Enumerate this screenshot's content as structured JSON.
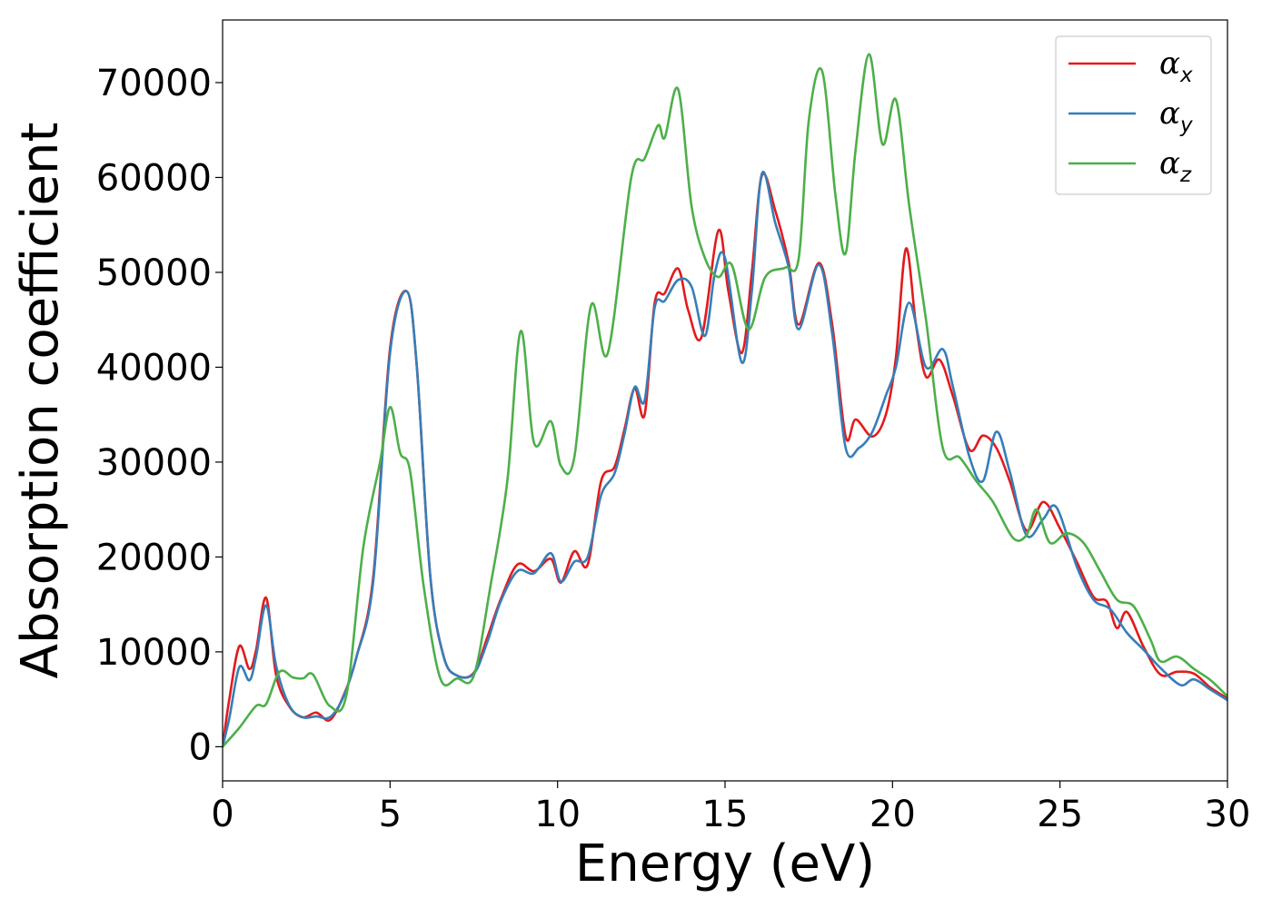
{
  "chart_data": {
    "type": "line",
    "title": "",
    "xlabel": "Energy (eV)",
    "ylabel": "Absorption coefficient",
    "xlim": [
      0,
      30
    ],
    "ylim": [
      -3600,
      76600
    ],
    "x_ticks": [
      0,
      5,
      10,
      15,
      20,
      25,
      30
    ],
    "y_ticks": [
      0,
      10000,
      20000,
      30000,
      40000,
      50000,
      60000,
      70000
    ],
    "grid": false,
    "legend_position": "top-right",
    "series": [
      {
        "name": "αx",
        "legend_symbol": "α",
        "legend_subscript": "x",
        "color": "#e41a1c",
        "points": [
          [
            0,
            0
          ],
          [
            0.2,
            5000
          ],
          [
            0.5,
            10600
          ],
          [
            0.8,
            8200
          ],
          [
            1.0,
            10200
          ],
          [
            1.3,
            15700
          ],
          [
            1.6,
            7500
          ],
          [
            2.0,
            4200
          ],
          [
            2.4,
            3100
          ],
          [
            2.8,
            3600
          ],
          [
            3.2,
            2800
          ],
          [
            3.6,
            5300
          ],
          [
            4.0,
            9500
          ],
          [
            4.5,
            18000
          ],
          [
            5.0,
            42000
          ],
          [
            5.5,
            48000
          ],
          [
            5.8,
            40000
          ],
          [
            6.2,
            18000
          ],
          [
            6.6,
            9500
          ],
          [
            7.0,
            7500
          ],
          [
            7.5,
            7800
          ],
          [
            7.9,
            11500
          ],
          [
            8.3,
            15500
          ],
          [
            8.8,
            19200
          ],
          [
            9.3,
            18500
          ],
          [
            9.8,
            19800
          ],
          [
            10.1,
            17300
          ],
          [
            10.5,
            20600
          ],
          [
            10.9,
            19200
          ],
          [
            11.3,
            28000
          ],
          [
            11.7,
            29500
          ],
          [
            12.0,
            33500
          ],
          [
            12.3,
            37800
          ],
          [
            12.6,
            35000
          ],
          [
            12.9,
            46800
          ],
          [
            13.2,
            47800
          ],
          [
            13.6,
            50400
          ],
          [
            13.9,
            46000
          ],
          [
            14.3,
            43200
          ],
          [
            14.8,
            54400
          ],
          [
            15.1,
            48000
          ],
          [
            15.5,
            41500
          ],
          [
            15.8,
            50000
          ],
          [
            16.1,
            60200
          ],
          [
            16.5,
            56500
          ],
          [
            16.9,
            51000
          ],
          [
            17.2,
            44500
          ],
          [
            17.8,
            51000
          ],
          [
            18.2,
            44500
          ],
          [
            18.6,
            32700
          ],
          [
            18.9,
            34500
          ],
          [
            19.4,
            32700
          ],
          [
            19.8,
            35000
          ],
          [
            20.1,
            41000
          ],
          [
            20.4,
            52500
          ],
          [
            20.7,
            44500
          ],
          [
            21.0,
            39000
          ],
          [
            21.4,
            40800
          ],
          [
            21.8,
            37000
          ],
          [
            22.3,
            31300
          ],
          [
            22.7,
            32800
          ],
          [
            23.1,
            31500
          ],
          [
            23.5,
            28000
          ],
          [
            24.0,
            22800
          ],
          [
            24.5,
            25800
          ],
          [
            25.0,
            23000
          ],
          [
            25.5,
            19500
          ],
          [
            26.0,
            15800
          ],
          [
            26.4,
            15300
          ],
          [
            26.7,
            12500
          ],
          [
            27.0,
            14200
          ],
          [
            27.5,
            10500
          ],
          [
            28.0,
            7600
          ],
          [
            28.5,
            7900
          ],
          [
            29.0,
            7700
          ],
          [
            29.5,
            6200
          ],
          [
            30.0,
            5100
          ]
        ]
      },
      {
        "name": "αy",
        "legend_symbol": "α",
        "legend_subscript": "y",
        "color": "#377eb8",
        "points": [
          [
            0,
            0
          ],
          [
            0.2,
            3000
          ],
          [
            0.5,
            8400
          ],
          [
            0.8,
            7000
          ],
          [
            1.0,
            9500
          ],
          [
            1.3,
            14900
          ],
          [
            1.6,
            8500
          ],
          [
            2.0,
            4300
          ],
          [
            2.4,
            3100
          ],
          [
            2.8,
            3200
          ],
          [
            3.2,
            3100
          ],
          [
            3.6,
            5200
          ],
          [
            4.0,
            9500
          ],
          [
            4.5,
            17500
          ],
          [
            5.0,
            41500
          ],
          [
            5.5,
            48000
          ],
          [
            5.8,
            40000
          ],
          [
            6.2,
            18000
          ],
          [
            6.6,
            9500
          ],
          [
            7.0,
            7500
          ],
          [
            7.5,
            7700
          ],
          [
            7.9,
            11000
          ],
          [
            8.3,
            15300
          ],
          [
            8.8,
            18500
          ],
          [
            9.3,
            18300
          ],
          [
            9.8,
            20400
          ],
          [
            10.1,
            17400
          ],
          [
            10.5,
            19500
          ],
          [
            10.9,
            20000
          ],
          [
            11.3,
            26500
          ],
          [
            11.7,
            28800
          ],
          [
            12.0,
            33000
          ],
          [
            12.3,
            37900
          ],
          [
            12.6,
            36500
          ],
          [
            12.9,
            46300
          ],
          [
            13.2,
            47000
          ],
          [
            13.6,
            49200
          ],
          [
            14.0,
            48500
          ],
          [
            14.4,
            43300
          ],
          [
            14.7,
            50000
          ],
          [
            15.0,
            51500
          ],
          [
            15.5,
            40500
          ],
          [
            15.8,
            48000
          ],
          [
            16.1,
            60400
          ],
          [
            16.5,
            55200
          ],
          [
            16.9,
            50500
          ],
          [
            17.2,
            44000
          ],
          [
            17.8,
            50800
          ],
          [
            18.2,
            43500
          ],
          [
            18.6,
            31500
          ],
          [
            19.0,
            31500
          ],
          [
            19.4,
            33200
          ],
          [
            19.8,
            37000
          ],
          [
            20.1,
            40000
          ],
          [
            20.5,
            46800
          ],
          [
            21.0,
            40000
          ],
          [
            21.5,
            41900
          ],
          [
            21.8,
            38000
          ],
          [
            22.3,
            30500
          ],
          [
            22.7,
            28000
          ],
          [
            23.1,
            33200
          ],
          [
            23.5,
            29000
          ],
          [
            24.0,
            22300
          ],
          [
            24.5,
            24000
          ],
          [
            24.9,
            25200
          ],
          [
            25.5,
            19000
          ],
          [
            26.0,
            15500
          ],
          [
            26.5,
            14500
          ],
          [
            27.0,
            12000
          ],
          [
            27.5,
            10200
          ],
          [
            28.0,
            8300
          ],
          [
            28.6,
            6500
          ],
          [
            29.0,
            7100
          ],
          [
            29.5,
            6000
          ],
          [
            30.0,
            4900
          ]
        ]
      },
      {
        "name": "αz",
        "legend_symbol": "α",
        "legend_subscript": "z",
        "color": "#4daf4a",
        "points": [
          [
            0,
            0
          ],
          [
            0.5,
            2000
          ],
          [
            1.0,
            4300
          ],
          [
            1.3,
            4500
          ],
          [
            1.7,
            7900
          ],
          [
            2.1,
            7300
          ],
          [
            2.4,
            7200
          ],
          [
            2.7,
            7600
          ],
          [
            3.2,
            4300
          ],
          [
            3.7,
            5500
          ],
          [
            4.2,
            21000
          ],
          [
            4.7,
            30000
          ],
          [
            5.0,
            35800
          ],
          [
            5.3,
            31000
          ],
          [
            5.6,
            29000
          ],
          [
            6.0,
            17000
          ],
          [
            6.5,
            7200
          ],
          [
            7.0,
            7200
          ],
          [
            7.5,
            7500
          ],
          [
            8.0,
            17000
          ],
          [
            8.5,
            28000
          ],
          [
            8.9,
            43800
          ],
          [
            9.3,
            32000
          ],
          [
            9.8,
            34300
          ],
          [
            10.1,
            29600
          ],
          [
            10.5,
            30500
          ],
          [
            11.0,
            46500
          ],
          [
            11.5,
            41500
          ],
          [
            12.2,
            60000
          ],
          [
            12.6,
            62000
          ],
          [
            13.0,
            65500
          ],
          [
            13.2,
            64200
          ],
          [
            13.6,
            69300
          ],
          [
            14.0,
            57000
          ],
          [
            14.4,
            51500
          ],
          [
            14.8,
            49500
          ],
          [
            15.2,
            50800
          ],
          [
            15.7,
            44000
          ],
          [
            16.2,
            49500
          ],
          [
            16.8,
            50500
          ],
          [
            17.2,
            51500
          ],
          [
            17.5,
            66000
          ],
          [
            17.9,
            71200
          ],
          [
            18.3,
            58000
          ],
          [
            18.6,
            52000
          ],
          [
            18.9,
            63000
          ],
          [
            19.3,
            73000
          ],
          [
            19.7,
            63500
          ],
          [
            20.1,
            68200
          ],
          [
            20.5,
            57000
          ],
          [
            21.0,
            45000
          ],
          [
            21.5,
            31500
          ],
          [
            22.0,
            30500
          ],
          [
            22.5,
            28000
          ],
          [
            23.0,
            25800
          ],
          [
            23.6,
            22000
          ],
          [
            24.0,
            22300
          ],
          [
            24.3,
            25000
          ],
          [
            24.7,
            21500
          ],
          [
            25.2,
            22500
          ],
          [
            25.7,
            21500
          ],
          [
            26.2,
            18500
          ],
          [
            26.7,
            15500
          ],
          [
            27.2,
            14800
          ],
          [
            27.7,
            11300
          ],
          [
            28.0,
            9000
          ],
          [
            28.5,
            9500
          ],
          [
            29.0,
            8200
          ],
          [
            29.5,
            7000
          ],
          [
            30.0,
            5300
          ]
        ]
      }
    ]
  }
}
